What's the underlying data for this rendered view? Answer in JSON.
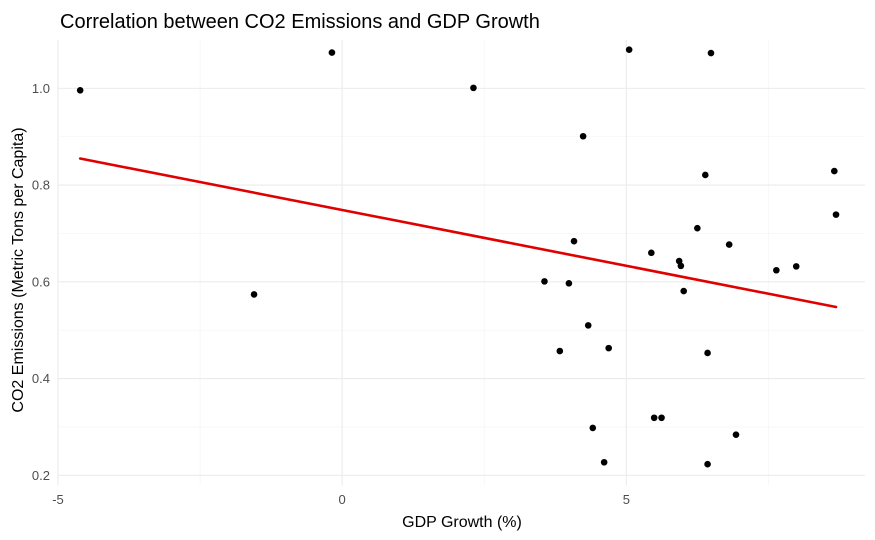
{
  "chart_data": {
    "type": "scatter",
    "title": "Correlation between CO2 Emissions and GDP Growth",
    "xlabel": "GDP Growth (%)",
    "ylabel": "CO2 Emissions (Metric Tons per Capita)",
    "xlim": [
      -5.0,
      9.2
    ],
    "ylim": [
      0.18,
      1.1
    ],
    "x_ticks": [
      -5,
      0,
      5
    ],
    "x_tick_labels": [
      "-5",
      "0",
      "5"
    ],
    "x_minor_ticks": [
      -2.5,
      2.5,
      7.5
    ],
    "y_ticks": [
      0.2,
      0.4,
      0.6,
      0.8,
      1.0
    ],
    "y_tick_labels": [
      "0.2",
      "0.4",
      "0.6",
      "0.8",
      "1.0"
    ],
    "y_minor_ticks": [
      0.3,
      0.5,
      0.7,
      0.9
    ],
    "grid": true,
    "legend": "none",
    "colors": {
      "points": "#000000",
      "trend": "#e00000"
    },
    "points": [
      {
        "x": -4.61,
        "y": 0.996
      },
      {
        "x": -1.55,
        "y": 0.574
      },
      {
        "x": -0.18,
        "y": 1.074
      },
      {
        "x": 2.31,
        "y": 1.001
      },
      {
        "x": 3.56,
        "y": 0.601
      },
      {
        "x": 3.83,
        "y": 0.457
      },
      {
        "x": 3.99,
        "y": 0.597
      },
      {
        "x": 4.08,
        "y": 0.684
      },
      {
        "x": 4.24,
        "y": 0.901
      },
      {
        "x": 4.33,
        "y": 0.51
      },
      {
        "x": 4.41,
        "y": 0.298
      },
      {
        "x": 4.61,
        "y": 0.227
      },
      {
        "x": 4.69,
        "y": 0.463
      },
      {
        "x": 5.05,
        "y": 1.08
      },
      {
        "x": 5.44,
        "y": 0.66
      },
      {
        "x": 5.49,
        "y": 0.319
      },
      {
        "x": 5.62,
        "y": 0.319
      },
      {
        "x": 5.93,
        "y": 0.643
      },
      {
        "x": 5.96,
        "y": 0.633
      },
      {
        "x": 6.01,
        "y": 0.581
      },
      {
        "x": 6.25,
        "y": 0.711
      },
      {
        "x": 6.39,
        "y": 0.821
      },
      {
        "x": 6.43,
        "y": 0.453
      },
      {
        "x": 6.43,
        "y": 0.223
      },
      {
        "x": 6.49,
        "y": 1.073
      },
      {
        "x": 6.81,
        "y": 0.677
      },
      {
        "x": 6.93,
        "y": 0.284
      },
      {
        "x": 7.64,
        "y": 0.624
      },
      {
        "x": 7.99,
        "y": 0.632
      },
      {
        "x": 8.66,
        "y": 0.829
      },
      {
        "x": 8.69,
        "y": 0.739
      }
    ],
    "trendline": {
      "x": [
        -4.61,
        8.69
      ],
      "y": [
        0.855,
        0.548
      ]
    }
  }
}
